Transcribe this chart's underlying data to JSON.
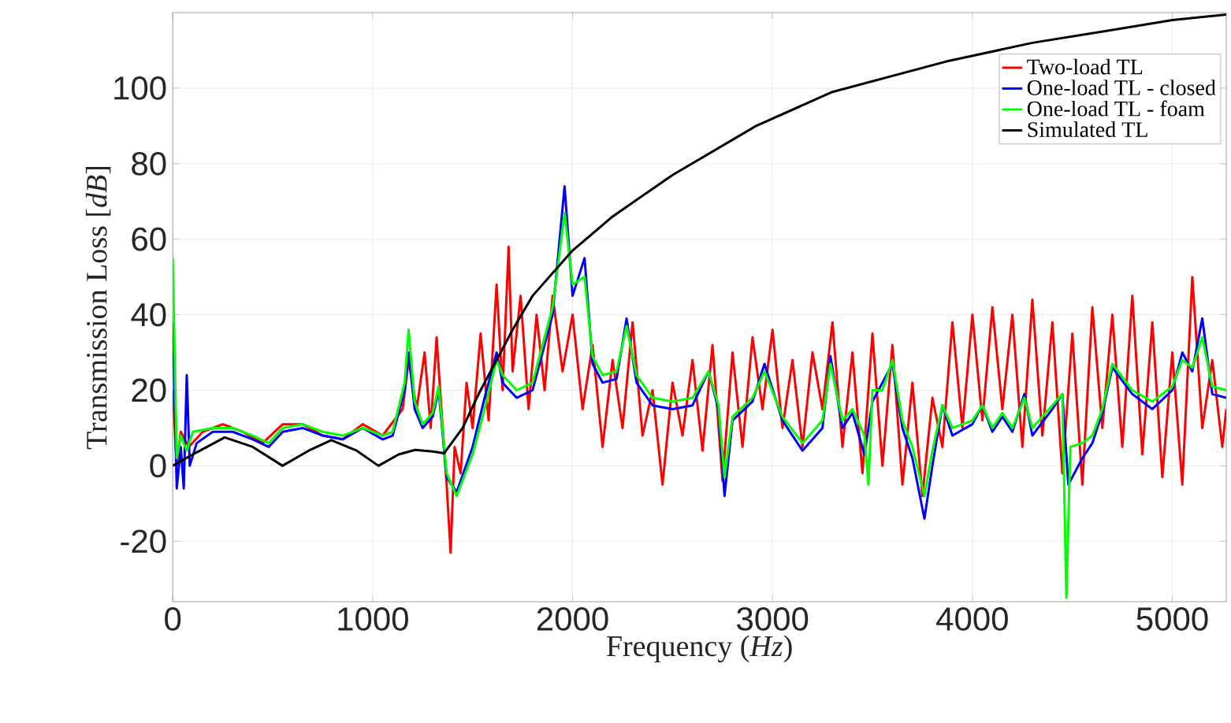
{
  "chart_data": {
    "type": "line",
    "xlabel": "Frequency (*Hz*)",
    "ylabel": "Transmission Loss [*dB*]",
    "xlim": [
      0,
      5270
    ],
    "ylim": [
      -36,
      120
    ],
    "xticks": [
      0,
      1000,
      2000,
      3000,
      4000,
      5000
    ],
    "yticks": [
      -20,
      0,
      20,
      40,
      60,
      80,
      100
    ],
    "grid": true,
    "legend": "top right",
    "line_style": "solid",
    "series": [
      {
        "name": "Two-load TL",
        "color": "#ff0000",
        "x": [
          0,
          20,
          40,
          80,
          150,
          250,
          350,
          450,
          550,
          650,
          750,
          850,
          950,
          1050,
          1150,
          1180,
          1220,
          1260,
          1290,
          1320,
          1340,
          1370,
          1390,
          1410,
          1440,
          1470,
          1500,
          1540,
          1580,
          1620,
          1650,
          1680,
          1700,
          1740,
          1780,
          1820,
          1860,
          1900,
          1950,
          2000,
          2050,
          2100,
          2150,
          2200,
          2250,
          2300,
          2350,
          2400,
          2450,
          2500,
          2550,
          2600,
          2650,
          2700,
          2750,
          2800,
          2850,
          2900,
          2950,
          3000,
          3050,
          3100,
          3150,
          3200,
          3250,
          3300,
          3350,
          3400,
          3450,
          3500,
          3550,
          3600,
          3650,
          3700,
          3750,
          3800,
          3850,
          3900,
          3950,
          4000,
          4050,
          4100,
          4150,
          4200,
          4250,
          4300,
          4350,
          4400,
          4450,
          4500,
          4550,
          4600,
          4650,
          4700,
          4750,
          4800,
          4850,
          4900,
          4950,
          5000,
          5050,
          5100,
          5150,
          5200,
          5250,
          5270
        ],
        "values": [
          20,
          0,
          9,
          5,
          9,
          11,
          9,
          6,
          11,
          11,
          8,
          7,
          11,
          8,
          15,
          28,
          15,
          30,
          10,
          34,
          18,
          -5,
          -23,
          5,
          -2,
          22,
          10,
          35,
          12,
          48,
          20,
          58,
          25,
          45,
          15,
          40,
          20,
          45,
          25,
          40,
          15,
          32,
          5,
          28,
          10,
          38,
          8,
          20,
          -5,
          22,
          8,
          28,
          4,
          32,
          -4,
          30,
          5,
          34,
          15,
          36,
          10,
          28,
          5,
          30,
          15,
          38,
          5,
          30,
          -2,
          35,
          0,
          32,
          -5,
          22,
          -8,
          18,
          5,
          38,
          10,
          40,
          12,
          42,
          15,
          40,
          5,
          44,
          8,
          38,
          -2,
          35,
          -5,
          42,
          10,
          40,
          5,
          45,
          3,
          38,
          -3,
          30,
          -5,
          50,
          10,
          28,
          5,
          15
        ]
      },
      {
        "name": "One-load TL - closed",
        "color": "#0000ff",
        "x": [
          0,
          20,
          40,
          55,
          70,
          85,
          120,
          200,
          300,
          400,
          480,
          550,
          650,
          750,
          850,
          950,
          1050,
          1100,
          1160,
          1180,
          1210,
          1250,
          1300,
          1330,
          1370,
          1420,
          1500,
          1560,
          1620,
          1650,
          1720,
          1800,
          1900,
          1960,
          2000,
          2060,
          2100,
          2150,
          2220,
          2270,
          2320,
          2400,
          2500,
          2600,
          2680,
          2730,
          2760,
          2800,
          2900,
          2960,
          3050,
          3150,
          3250,
          3290,
          3350,
          3400,
          3460,
          3500,
          3550,
          3600,
          3650,
          3700,
          3760,
          3800,
          3850,
          3900,
          4000,
          4050,
          4100,
          4150,
          4200,
          4260,
          4300,
          4400,
          4450,
          4480,
          4550,
          4600,
          4650,
          4700,
          4800,
          4900,
          5000,
          5050,
          5100,
          5150,
          5200,
          5270
        ],
        "values": [
          38,
          -6,
          5,
          -6,
          24,
          0,
          6,
          9,
          9,
          7,
          5,
          9,
          10,
          8,
          7,
          10,
          7,
          8,
          20,
          30,
          15,
          10,
          13,
          20,
          -3,
          -7,
          5,
          18,
          30,
          22,
          18,
          20,
          40,
          74,
          45,
          55,
          27,
          22,
          23,
          39,
          22,
          16,
          15,
          16,
          25,
          15,
          -8,
          12,
          17,
          27,
          12,
          4,
          10,
          29,
          10,
          14,
          3,
          17,
          22,
          27,
          10,
          2,
          -14,
          0,
          16,
          8,
          11,
          16,
          9,
          13,
          9,
          19,
          8,
          15,
          19,
          -5,
          2,
          6,
          14,
          26,
          19,
          15,
          20,
          30,
          25,
          39,
          19,
          18
        ]
      },
      {
        "name": "One-load TL - foam",
        "color": "#00ff00",
        "x": [
          0,
          20,
          40,
          70,
          100,
          200,
          300,
          400,
          480,
          550,
          650,
          750,
          850,
          950,
          1050,
          1100,
          1160,
          1180,
          1210,
          1250,
          1300,
          1330,
          1370,
          1420,
          1500,
          1560,
          1620,
          1650,
          1720,
          1800,
          1900,
          1960,
          2000,
          2060,
          2100,
          2150,
          2220,
          2270,
          2320,
          2400,
          2500,
          2600,
          2680,
          2730,
          2760,
          2800,
          2900,
          2960,
          3050,
          3150,
          3250,
          3290,
          3350,
          3400,
          3460,
          3480,
          3500,
          3550,
          3600,
          3650,
          3700,
          3760,
          3800,
          3850,
          3900,
          4000,
          4050,
          4100,
          4150,
          4200,
          4260,
          4300,
          4400,
          4450,
          4470,
          4490,
          4550,
          4600,
          4650,
          4700,
          4800,
          4900,
          5000,
          5050,
          5100,
          5150,
          5200,
          5270
        ],
        "values": [
          55,
          2,
          8,
          4,
          9,
          10,
          10,
          8,
          6,
          10,
          11,
          9,
          8,
          10,
          8,
          9,
          22,
          36,
          17,
          11,
          14,
          21,
          -2,
          -8,
          3,
          15,
          28,
          24,
          20,
          22,
          42,
          67,
          48,
          50,
          29,
          24,
          25,
          37,
          24,
          18,
          17,
          18,
          25,
          16,
          -3,
          13,
          18,
          25,
          13,
          6,
          12,
          27,
          12,
          15,
          8,
          -5,
          20,
          20,
          28,
          12,
          5,
          -8,
          4,
          16,
          10,
          12,
          16,
          10,
          14,
          10,
          18,
          10,
          16,
          19,
          -35,
          5,
          6,
          8,
          15,
          27,
          20,
          17,
          21,
          28,
          26,
          34,
          21,
          20
        ]
      },
      {
        "name": "Simulated TL",
        "color": "#000000",
        "x": [
          0,
          100,
          260,
          400,
          549,
          680,
          793,
          920,
          1029,
          1130,
          1213,
          1300,
          1357,
          1450,
          1530,
          1600,
          1700,
          1800,
          1900,
          2000,
          2200,
          2500,
          2918,
          3300,
          3865,
          4300,
          4653,
          5000,
          5270
        ],
        "values": [
          0,
          3,
          7.5,
          5,
          0,
          4,
          6.8,
          4,
          0,
          3,
          4.2,
          3.8,
          3.3,
          10,
          19,
          26,
          36,
          45,
          51,
          57,
          66,
          77,
          90,
          99,
          107,
          112,
          115,
          118,
          119.5
        ]
      }
    ]
  }
}
